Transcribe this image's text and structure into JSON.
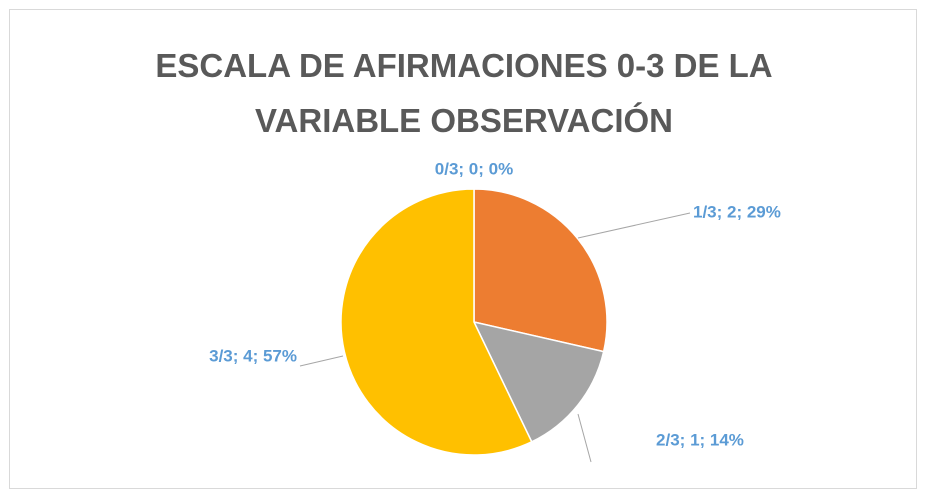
{
  "chart_data": {
    "type": "pie",
    "title": "ESCALA DE AFIRMACIONES 0-3 DE LA VARIABLE OBSERVACIÓN",
    "categories": [
      "0/3",
      "1/3",
      "2/3",
      "3/3"
    ],
    "values": [
      0,
      2,
      1,
      4
    ],
    "value_labels": [
      "0/3; 0; 0%",
      "1/3; 2; 29%",
      "2/3; 1; 14%",
      "3/3; 4; 57%"
    ],
    "colors": [
      "#4472c4",
      "#ed7d31",
      "#a5a5a5",
      "#ffc000"
    ]
  }
}
